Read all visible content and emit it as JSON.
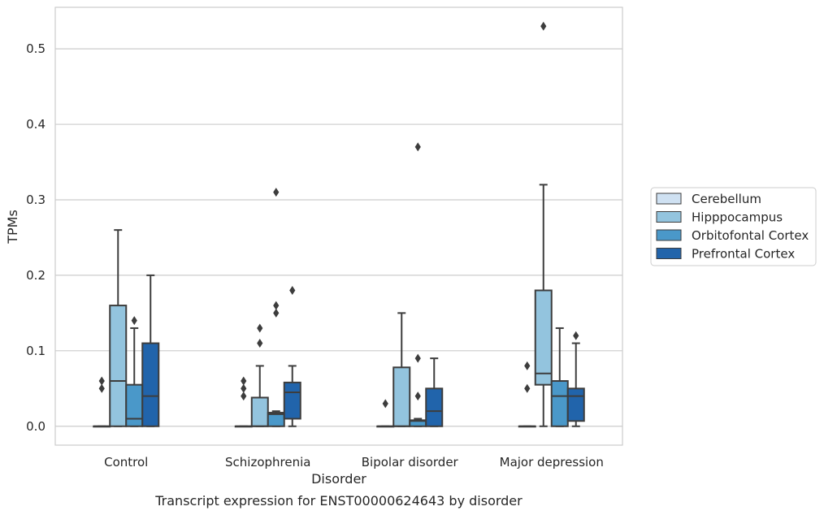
{
  "chart_data": {
    "type": "box",
    "xlabel": "Disorder",
    "ylabel": "TPMs",
    "caption": "Transcript expression for ENST00000624643 by disorder",
    "ylim": [
      -0.025,
      0.555
    ],
    "yticks": [
      "0.0",
      "0.1",
      "0.2",
      "0.3",
      "0.4",
      "0.5"
    ],
    "ytick_values": [
      0.0,
      0.1,
      0.2,
      0.3,
      0.4,
      0.5
    ],
    "grid": "horizontal",
    "legend_position": "right",
    "categories": [
      "Control",
      "Schizophrenia",
      "Bipolar disorder",
      "Major depression"
    ],
    "series": [
      {
        "name": "Cerebellum",
        "color": "#cfe1f2",
        "boxes": [
          {
            "whislo": 0,
            "q1": 0,
            "med": 0,
            "q3": 0,
            "whishi": 0,
            "fliers": [
              0.05,
              0.06
            ]
          },
          {
            "whislo": 0,
            "q1": 0,
            "med": 0,
            "q3": 0,
            "whishi": 0,
            "fliers": [
              0.04,
              0.05,
              0.06
            ]
          },
          {
            "whislo": 0,
            "q1": 0,
            "med": 0,
            "q3": 0,
            "whishi": 0,
            "fliers": [
              0.03
            ]
          },
          {
            "whislo": 0,
            "q1": 0,
            "med": 0,
            "q3": 0,
            "whishi": 0,
            "fliers": [
              0.05,
              0.08
            ]
          }
        ]
      },
      {
        "name": "Hipppocampus",
        "color": "#93c4de",
        "boxes": [
          {
            "whislo": 0,
            "q1": 0,
            "med": 0.06,
            "q3": 0.16,
            "whishi": 0.26,
            "fliers": []
          },
          {
            "whislo": 0,
            "q1": 0,
            "med": 0,
            "q3": 0.038,
            "whishi": 0.08,
            "fliers": [
              0.11,
              0.13
            ]
          },
          {
            "whislo": 0,
            "q1": 0,
            "med": 0,
            "q3": 0.078,
            "whishi": 0.15,
            "fliers": []
          },
          {
            "whislo": 0,
            "q1": 0.055,
            "med": 0.07,
            "q3": 0.18,
            "whishi": 0.32,
            "fliers": [
              0.53
            ]
          }
        ]
      },
      {
        "name": "Orbitofontal Cortex",
        "color": "#4a98c9",
        "boxes": [
          {
            "whislo": 0,
            "q1": 0,
            "med": 0.01,
            "q3": 0.055,
            "whishi": 0.13,
            "fliers": [
              0.14
            ]
          },
          {
            "whislo": 0,
            "q1": 0,
            "med": 0.016,
            "q3": 0.018,
            "whishi": 0.02,
            "fliers": [
              0.15,
              0.16,
              0.31
            ]
          },
          {
            "whislo": 0,
            "q1": 0,
            "med": 0.007,
            "q3": 0.008,
            "whishi": 0.01,
            "fliers": [
              0.04,
              0.09,
              0.37
            ]
          },
          {
            "whislo": 0,
            "q1": 0,
            "med": 0.04,
            "q3": 0.06,
            "whishi": 0.13,
            "fliers": []
          }
        ]
      },
      {
        "name": "Prefrontal Cortex",
        "color": "#2164ab",
        "boxes": [
          {
            "whislo": 0,
            "q1": 0,
            "med": 0.04,
            "q3": 0.11,
            "whishi": 0.2,
            "fliers": []
          },
          {
            "whislo": 0,
            "q1": 0.01,
            "med": 0.045,
            "q3": 0.058,
            "whishi": 0.08,
            "fliers": [
              0.18
            ]
          },
          {
            "whislo": 0,
            "q1": 0,
            "med": 0.02,
            "q3": 0.05,
            "whishi": 0.09,
            "fliers": []
          },
          {
            "whislo": 0,
            "q1": 0.007,
            "med": 0.04,
            "q3": 0.05,
            "whishi": 0.11,
            "fliers": [
              0.12
            ]
          }
        ]
      }
    ]
  }
}
